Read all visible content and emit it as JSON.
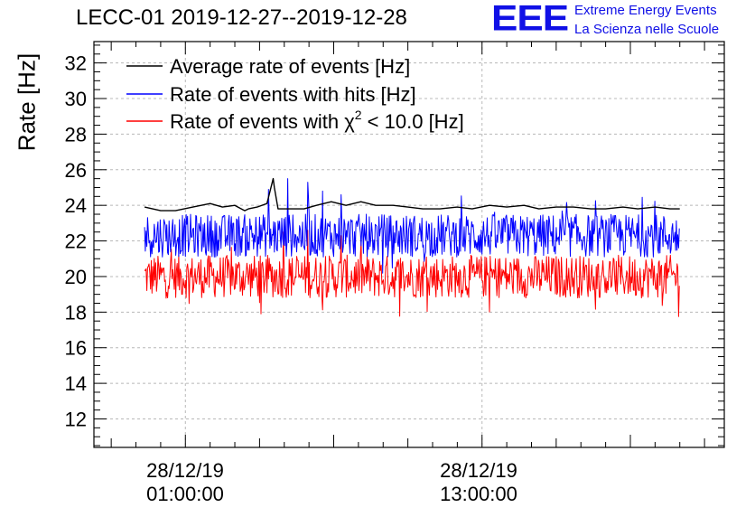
{
  "header": {
    "title": "LECC-01 2019-12-27--2019-12-28",
    "logo_text": "EEE",
    "logo_line1": "Extreme Energy Events",
    "logo_line2": "La Scienza nelle Scuole"
  },
  "chart_data": {
    "type": "line",
    "title": "LECC-01 2019-12-27--2019-12-28",
    "ylabel": "Rate [Hz]",
    "xlabel": "",
    "ylim": [
      10.4,
      33.2
    ],
    "yticks": [
      12,
      14,
      16,
      18,
      20,
      22,
      24,
      26,
      28,
      30,
      32
    ],
    "x_ticks": [
      {
        "date": "28/12/19",
        "time": "01:00:00",
        "hours": 1
      },
      {
        "date": "28/12/19",
        "time": "13:00:00",
        "hours": 13
      }
    ],
    "x_range_hours": [
      -2.7,
      22.8
    ],
    "grid": true,
    "legend_position": "top-left",
    "series": [
      {
        "name": "Average rate of events [Hz]",
        "color": "#000000",
        "x_hours": [
          -0.65,
          0.0,
          0.6,
          1.3,
          2.0,
          2.5,
          3.0,
          3.4,
          3.55,
          3.9,
          4.3,
          4.55,
          4.6,
          4.75,
          5.2,
          5.8,
          6.3,
          6.9,
          7.5,
          8.1,
          8.7,
          9.4,
          10.0,
          10.6,
          11.3,
          12.0,
          12.6,
          13.3,
          14.0,
          14.7,
          15.3,
          16.0,
          16.7,
          17.4,
          18.0,
          18.7,
          19.3,
          20.0,
          20.6,
          21.0
        ],
        "y": [
          23.9,
          23.7,
          23.7,
          23.9,
          24.1,
          23.9,
          24.0,
          23.7,
          23.8,
          23.9,
          24.1,
          25.5,
          25.0,
          23.8,
          23.8,
          23.8,
          24.0,
          24.2,
          24.0,
          24.2,
          24.0,
          24.0,
          23.9,
          23.8,
          23.8,
          23.9,
          23.8,
          24.0,
          23.9,
          24.0,
          23.8,
          23.9,
          23.9,
          23.8,
          23.8,
          23.9,
          23.8,
          23.9,
          23.8,
          23.8
        ]
      },
      {
        "name": "Rate of events with hits [Hz]",
        "color": "#0000ff",
        "x_range_hours": [
          -0.65,
          21.0
        ],
        "mean": 22.3,
        "typical_range": [
          21.3,
          23.4
        ],
        "max": 25.5,
        "spikes": [
          {
            "hours": 5.15,
            "y": 25.5
          },
          {
            "hours": 5.95,
            "y": 25.3
          },
          {
            "hours": 6.55,
            "y": 24.8
          },
          {
            "hours": 4.35,
            "y": 24.9
          },
          {
            "hours": 7.3,
            "y": 24.6
          }
        ]
      },
      {
        "name": "Rate of events with χ² < 10.0 [Hz]",
        "color": "#ff0000",
        "x_range_hours": [
          -0.65,
          21.0
        ],
        "mean": 20.0,
        "typical_range": [
          19.0,
          21.1
        ],
        "min": 17.9,
        "max": 22.6,
        "spikes": [
          {
            "hours": 5.95,
            "y": 22.6
          },
          {
            "hours": 4.95,
            "y": 22.5
          },
          {
            "hours": 7.3,
            "y": 22.3
          },
          {
            "hours": 4.05,
            "y": 17.9
          }
        ]
      }
    ]
  }
}
